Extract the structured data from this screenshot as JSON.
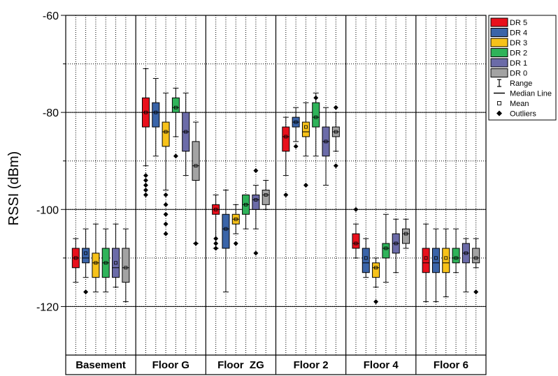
{
  "chart_data": {
    "type": "box",
    "ylabel": "RSSI (dBm)",
    "xlabel": "",
    "ylim": [
      -130,
      -60
    ],
    "yticks": [
      -60,
      -80,
      -100,
      -120
    ],
    "categories": [
      "Basement",
      "Floor G",
      "Floor  ZG",
      "Floor 2",
      "Floor 4",
      "Floor 6"
    ],
    "series_colors": {
      "DR 5": "#e8101c",
      "DR 4": "#3a64a8",
      "DR 3": "#f7c21a",
      "DR 2": "#2fb35a",
      "DR 1": "#6b6ba8",
      "DR 0": "#a3a3a3"
    },
    "legend": {
      "position": "top-right",
      "series": [
        "DR 5",
        "DR 4",
        "DR 3",
        "DR 2",
        "DR 1",
        "DR 0"
      ],
      "symbols": [
        "Range",
        "Median Line",
        "Mean",
        "Outliers"
      ]
    },
    "series": [
      {
        "name": "DR 5",
        "boxes": [
          {
            "min": -115,
            "q1": -112,
            "median": -110,
            "q3": -108,
            "max": -106,
            "mean": -110,
            "outliers": []
          },
          {
            "min": -91,
            "q1": -83,
            "median": -80,
            "q3": -77,
            "max": -71,
            "mean": -80,
            "outliers": [
              -93,
              -94,
              -95,
              -96,
              -97
            ]
          },
          {
            "min": -108,
            "q1": -101,
            "median": -100,
            "q3": -99,
            "max": -97,
            "mean": -100,
            "outliers": [
              -106,
              -107,
              -108
            ]
          },
          {
            "min": -93,
            "q1": -88,
            "median": -85,
            "q3": -83,
            "max": -81,
            "mean": -85,
            "outliers": [
              -97
            ]
          },
          {
            "min": -110,
            "q1": -108,
            "median": -107,
            "q3": -105,
            "max": -103,
            "mean": -107,
            "outliers": [
              -100
            ]
          },
          {
            "min": -119,
            "q1": -113,
            "median": -111,
            "q3": -108,
            "max": -103,
            "mean": -110,
            "outliers": []
          }
        ]
      },
      {
        "name": "DR 4",
        "boxes": [
          {
            "min": -114,
            "q1": -111,
            "median": -110,
            "q3": -108,
            "max": -104,
            "mean": -109,
            "outliers": [
              -117
            ]
          },
          {
            "min": -89,
            "q1": -83,
            "median": -80,
            "q3": -78,
            "max": -73,
            "mean": -80,
            "outliers": []
          },
          {
            "min": -117,
            "q1": -108,
            "median": -104,
            "q3": -101,
            "max": -96,
            "mean": -104,
            "outliers": []
          },
          {
            "min": -86,
            "q1": -83,
            "median": -82,
            "q3": -81,
            "max": -79,
            "mean": -82,
            "outliers": [
              -87
            ]
          },
          {
            "min": -114,
            "q1": -113,
            "median": -111,
            "q3": -108,
            "max": -106,
            "mean": -110,
            "outliers": []
          },
          {
            "min": -119,
            "q1": -113,
            "median": -111,
            "q3": -108,
            "max": -104,
            "mean": -110,
            "outliers": []
          }
        ]
      },
      {
        "name": "DR 3",
        "boxes": [
          {
            "min": -117,
            "q1": -114,
            "median": -111,
            "q3": -109,
            "max": -103,
            "mean": -111,
            "outliers": []
          },
          {
            "min": -96,
            "q1": -87,
            "median": -84,
            "q3": -82,
            "max": -76,
            "mean": -84,
            "outliers": [
              -97,
              -99,
              -101,
              -103,
              -105
            ]
          },
          {
            "min": -105,
            "q1": -103,
            "median": -102,
            "q3": -101,
            "max": -99,
            "mean": -102,
            "outliers": [
              -107
            ]
          },
          {
            "min": -89,
            "q1": -85,
            "median": -84,
            "q3": -82,
            "max": -78,
            "mean": -83,
            "outliers": [
              -95
            ]
          },
          {
            "min": -116,
            "q1": -114,
            "median": -112,
            "q3": -111,
            "max": -110,
            "mean": -112,
            "outliers": [
              -119
            ]
          },
          {
            "min": -118,
            "q1": -113,
            "median": -111,
            "q3": -108,
            "max": -104,
            "mean": -110,
            "outliers": []
          }
        ]
      },
      {
        "name": "DR 2",
        "boxes": [
          {
            "min": -117,
            "q1": -114,
            "median": -111,
            "q3": -108,
            "max": -104,
            "mean": -111,
            "outliers": []
          },
          {
            "min": -85,
            "q1": -80,
            "median": -79,
            "q3": -77,
            "max": -75,
            "mean": -79,
            "outliers": [
              -89
            ]
          },
          {
            "min": -104,
            "q1": -101,
            "median": -99,
            "q3": -97,
            "max": -97,
            "mean": -99,
            "outliers": []
          },
          {
            "min": -89,
            "q1": -83,
            "median": -81,
            "q3": -78,
            "max": -76,
            "mean": -81,
            "outliers": [
              -77
            ]
          },
          {
            "min": -115,
            "q1": -110,
            "median": -108,
            "q3": -107,
            "max": -101,
            "mean": -108,
            "outliers": []
          },
          {
            "min": -113,
            "q1": -111,
            "median": -110,
            "q3": -108,
            "max": -104,
            "mean": -110,
            "outliers": []
          }
        ]
      },
      {
        "name": "DR 1",
        "boxes": [
          {
            "min": -116,
            "q1": -114,
            "median": -112,
            "q3": -108,
            "max": -103,
            "mean": -111,
            "outliers": []
          },
          {
            "min": -93,
            "q1": -88,
            "median": -84,
            "q3": -80,
            "max": -76,
            "mean": -84,
            "outliers": []
          },
          {
            "min": -104,
            "q1": -100,
            "median": -98,
            "q3": -97,
            "max": -95,
            "mean": -98,
            "outliers": [
              -92,
              -109
            ]
          },
          {
            "min": -95,
            "q1": -89,
            "median": -86,
            "q3": -83,
            "max": -79,
            "mean": -86,
            "outliers": []
          },
          {
            "min": -113,
            "q1": -109,
            "median": -107,
            "q3": -105,
            "max": -102,
            "mean": -107,
            "outliers": []
          },
          {
            "min": -117,
            "q1": -111,
            "median": -109,
            "q3": -107,
            "max": -106,
            "mean": -109,
            "outliers": []
          }
        ]
      },
      {
        "name": "DR 0",
        "boxes": [
          {
            "min": -119,
            "q1": -115,
            "median": -112,
            "q3": -108,
            "max": -104,
            "mean": -112,
            "outliers": []
          },
          {
            "min": -107,
            "q1": -94,
            "median": -91,
            "q3": -86,
            "max": -82,
            "mean": -91,
            "outliers": [
              -107
            ]
          },
          {
            "min": -100,
            "q1": -99,
            "median": -97,
            "q3": -96,
            "max": -94,
            "mean": -97,
            "outliers": []
          },
          {
            "min": -88,
            "q1": -85,
            "median": -84,
            "q3": -83,
            "max": -80,
            "mean": -84,
            "outliers": [
              -79,
              -91
            ]
          },
          {
            "min": -108,
            "q1": -107,
            "median": -105,
            "q3": -104,
            "max": -102,
            "mean": -105,
            "outliers": []
          },
          {
            "min": -112,
            "q1": -111,
            "median": -110,
            "q3": -108,
            "max": -106,
            "mean": -110,
            "outliers": [
              -117
            ]
          }
        ]
      }
    ]
  }
}
